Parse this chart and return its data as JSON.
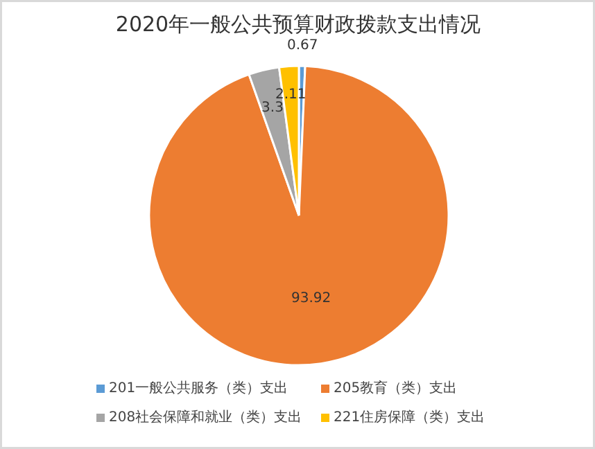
{
  "chart_data": {
    "type": "pie",
    "title": "2020年一般公共预算财政拨款支出情况",
    "categories": [
      "201一般公共服务（类）支出",
      "205教育（类）支出",
      "208社会保障和就业（类）支出",
      "221住房保障（类）支出"
    ],
    "values": [
      0.67,
      93.92,
      3.3,
      2.11
    ],
    "colors": [
      "#5b9bd5",
      "#ed7d31",
      "#a5a5a5",
      "#ffc000"
    ],
    "data_labels": true,
    "legend": "bottom"
  }
}
